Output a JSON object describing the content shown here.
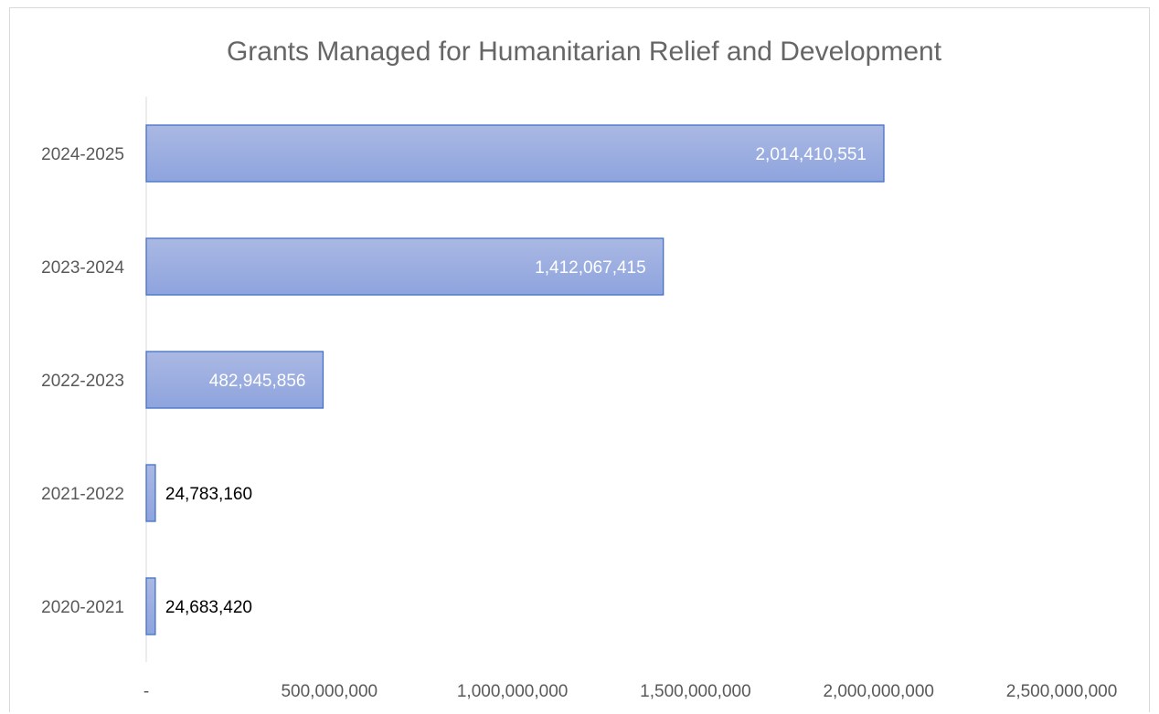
{
  "chart_data": {
    "type": "bar",
    "orientation": "horizontal",
    "title": "Grants Managed for Humanitarian Relief and Development",
    "xlabel": "",
    "ylabel": "",
    "categories": [
      "2024-2025",
      "2023-2024",
      "2022-2023",
      "2021-2022",
      "2020-2021"
    ],
    "values": [
      2014410551,
      1412067415,
      482945856,
      24783160,
      24683420
    ],
    "data_labels": [
      "2,014,410,551",
      "1,412,067,415",
      "482,945,856",
      "24,783,160",
      "24,683,420"
    ],
    "xlim": [
      0,
      2500000000
    ],
    "x_ticks": [
      0,
      500000000,
      1000000000,
      1500000000,
      2000000000,
      2500000000
    ],
    "x_tick_labels": [
      "-",
      "500,000,000",
      "1,000,000,000",
      "1,500,000,000",
      "2,000,000,000",
      "2,500,000,000"
    ],
    "grid": false,
    "legend": "none",
    "colors": {
      "bar_fill_top": "#aab8e3",
      "bar_fill_bottom": "#8ea4de",
      "bar_stroke": "#4472c4",
      "axis_line": "#d9d9d9",
      "title": "#666666",
      "axis_text": "#595959",
      "label_inside": "#ffffff",
      "label_outside": "#000000"
    }
  }
}
